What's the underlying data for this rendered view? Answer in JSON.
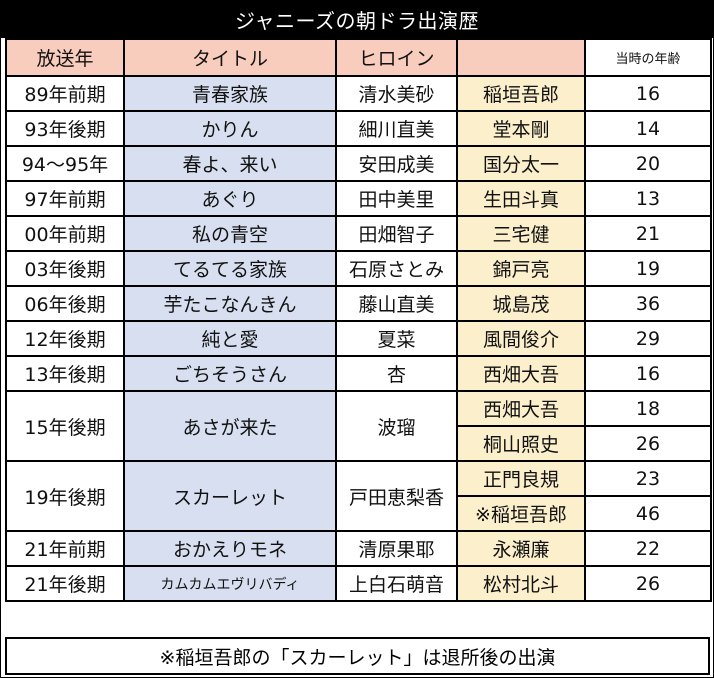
{
  "title": "ジャニーズの朝ドラ出演歴",
  "headers": {
    "year": "放送年",
    "drama": "タイトル",
    "heroine": "ヒロイン",
    "person": "",
    "age": "当時の年齢"
  },
  "rows": [
    {
      "year": "89年前期",
      "drama": "青春家族",
      "heroine": "清水美砂",
      "person": "稲垣吾郎",
      "age": "16"
    },
    {
      "year": "93年後期",
      "drama": "かりん",
      "heroine": "細川直美",
      "person": "堂本剛",
      "age": "14"
    },
    {
      "year": "94～95年",
      "drama": "春よ、来い",
      "heroine": "安田成美",
      "person": "国分太一",
      "age": "20"
    },
    {
      "year": "97年前期",
      "drama": "あぐり",
      "heroine": "田中美里",
      "person": "生田斗真",
      "age": "13"
    },
    {
      "year": "00年前期",
      "drama": "私の青空",
      "heroine": "田畑智子",
      "person": "三宅健",
      "age": "21"
    },
    {
      "year": "03年後期",
      "drama": "てるてる家族",
      "heroine": "石原さとみ",
      "person": "錦戸亮",
      "age": "19"
    },
    {
      "year": "06年後期",
      "drama": "芋たこなんきん",
      "heroine": "藤山直美",
      "person": "城島茂",
      "age": "36"
    },
    {
      "year": "12年後期",
      "drama": "純と愛",
      "heroine": "夏菜",
      "person": "風間俊介",
      "age": "29"
    },
    {
      "year": "13年後期",
      "drama": "ごちそうさん",
      "heroine": "杏",
      "person": "西畑大吾",
      "age": "16"
    },
    {
      "year": "15年後期",
      "drama": "あさが来た",
      "heroine": "波瑠",
      "person": "西畑大吾",
      "age": "18",
      "person2": "桐山照史",
      "age2": "26"
    },
    {
      "year": "19年後期",
      "drama": "スカーレット",
      "heroine": "戸田恵梨香",
      "person": "正門良規",
      "age": "23",
      "person2": "※稲垣吾郎",
      "age2": "46"
    },
    {
      "year": "21年前期",
      "drama": "おかえりモネ",
      "heroine": "清原果耶",
      "person": "永瀬廉",
      "age": "22"
    },
    {
      "year": "21年後期",
      "drama": "カムカムエヴリバディ",
      "heroine": "上白石萌音",
      "person": "松村北斗",
      "age": "26"
    }
  ],
  "footnote": "※稲垣吾郎の「スカーレット」は退所後の出演",
  "colors": {
    "header_bg": "#f9cdbd",
    "title_col_bg": "#d7dff0",
    "person_col_bg": "#fcefcc",
    "titlebar_bg": "#000000"
  }
}
